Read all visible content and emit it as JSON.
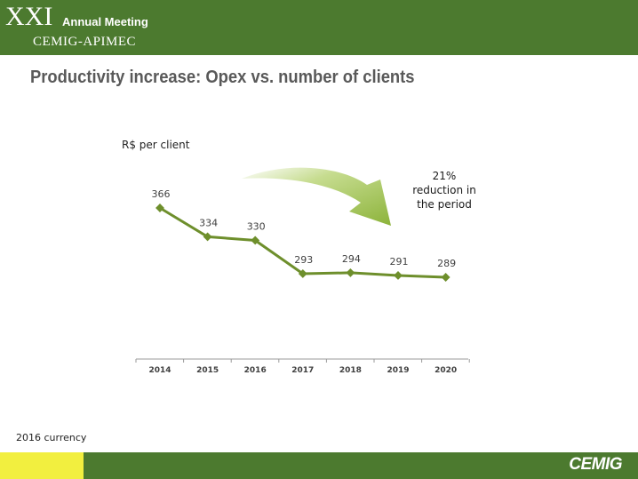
{
  "header": {
    "numeral": "XXI",
    "event": "Annual Meeting",
    "organizer": "CEMIG-APIMEC"
  },
  "slide": {
    "title": "Productivity increase: Opex vs. number of clients",
    "unit_label": "R$ per client",
    "reduction_note": [
      "21%",
      "reduction in",
      "the period"
    ],
    "currency_note": "2016 currency"
  },
  "footer": {
    "logo_text": "CEMIG"
  },
  "colors": {
    "brand_green": "#4c7a2f",
    "line_green": "#6e8f2c",
    "arrow_green": "#8cb33a",
    "footer_yellow": "#f2ef3f"
  },
  "chart_data": {
    "type": "line",
    "title": "",
    "xlabel": "",
    "ylabel": "R$ per client",
    "categories": [
      "2014",
      "2015",
      "2016",
      "2017",
      "2018",
      "2019",
      "2020"
    ],
    "series": [
      {
        "values": [
          366,
          334,
          330,
          293,
          294,
          291,
          289
        ]
      }
    ],
    "data_labels": true,
    "grid": false,
    "legend": "none",
    "annotation": {
      "text": "21% reduction in the period",
      "arrow_icon": "curved-arrow-icon"
    }
  }
}
